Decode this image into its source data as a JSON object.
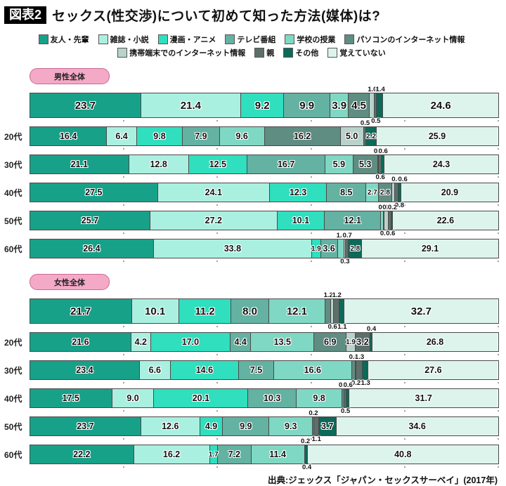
{
  "header": {
    "tag": "図表2",
    "title": "セックス(性交渉)について初めて知った方法(媒体)は?"
  },
  "source": "出典:ジェックス「ジャパン・セックスサーベイ」(2017年)",
  "chart_data": {
    "type": "stacked-bar-horizontal",
    "unit": "%",
    "xlim": [
      0,
      100
    ],
    "legend_position": "top",
    "legend_rows": [
      [
        0,
        1,
        2,
        3,
        4,
        5
      ],
      [
        6,
        7,
        8,
        9
      ]
    ],
    "categories": [
      "友人・先輩",
      "雑誌・小説",
      "漫画・アニメ",
      "テレビ番組",
      "学校の授業",
      "パソコンのインターネット情報",
      "携帯端末でのインターネット情報",
      "親",
      "その他",
      "覚えていない"
    ],
    "colors": [
      "#18a189",
      "#aaf0e0",
      "#2fdfbe",
      "#63b2a2",
      "#7fd8c3",
      "#5f8d81",
      "#b9d2cb",
      "#5d6f6a",
      "#0c6a59",
      "#ddf4ec"
    ],
    "groups": [
      {
        "badge": "男性全体",
        "badge_color": "#f4a9c7",
        "rows": [
          {
            "label": "",
            "total": true,
            "values": [
              23.7,
              21.4,
              9.2,
              9.9,
              3.9,
              4.5,
              1.0,
              0.5,
              1.4,
              24.6
            ]
          },
          {
            "label": "20代",
            "total": false,
            "values": [
              16.4,
              6.4,
              9.8,
              7.9,
              9.6,
              16.2,
              5.0,
              0.5,
              2.2,
              25.9
            ]
          },
          {
            "label": "30代",
            "total": false,
            "values": [
              21.1,
              12.8,
              12.5,
              16.7,
              5.9,
              5.3,
              0.2,
              0.6,
              0.6,
              24.3
            ]
          },
          {
            "label": "40代",
            "total": false,
            "values": [
              27.5,
              24.1,
              12.3,
              8.5,
              2.7,
              2.8,
              0.6,
              0.8,
              0.6,
              20.9
            ]
          },
          {
            "label": "50代",
            "total": false,
            "values": [
              25.7,
              27.2,
              10.1,
              12.1,
              0.6,
              0.1,
              0.9,
              0.6,
              0.2,
              22.6
            ]
          },
          {
            "label": "60代",
            "total": false,
            "values": [
              26.4,
              33.8,
              1.9,
              3.6,
              1.4,
              0.0,
              0.3,
              0.7,
              2.8,
              29.1
            ]
          }
        ]
      },
      {
        "badge": "女性全体",
        "badge_color": "#f4a9c7",
        "rows": [
          {
            "label": "",
            "total": true,
            "values": [
              21.7,
              10.1,
              11.2,
              8.0,
              12.1,
              1.2,
              0.6,
              1.2,
              1.1,
              32.7
            ]
          },
          {
            "label": "20代",
            "total": false,
            "values": [
              21.6,
              4.2,
              17.0,
              4.4,
              13.5,
              6.9,
              1.9,
              3.2,
              0.4,
              26.8
            ]
          },
          {
            "label": "30代",
            "total": false,
            "values": [
              23.4,
              6.6,
              14.6,
              7.5,
              16.6,
              0.8,
              0.2,
              1.3,
              1.3,
              27.6
            ]
          },
          {
            "label": "40代",
            "total": false,
            "values": [
              17.5,
              9.0,
              20.1,
              10.3,
              9.8,
              0.4,
              0.0,
              0.5,
              0.6,
              31.7
            ]
          },
          {
            "label": "50代",
            "total": false,
            "values": [
              23.7,
              12.6,
              4.9,
              9.9,
              9.3,
              0.2,
              0.0,
              1.1,
              3.7,
              34.6
            ]
          },
          {
            "label": "60代",
            "total": false,
            "values": [
              22.2,
              16.2,
              1.7,
              7.2,
              11.4,
              0.0,
              0.0,
              0.2,
              0.4,
              40.8
            ]
          }
        ]
      }
    ]
  }
}
